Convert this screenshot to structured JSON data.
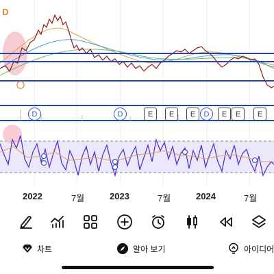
{
  "chart": {
    "top_badge": "D",
    "event_markers": [
      "D",
      "D",
      "E",
      "E",
      "E",
      "D",
      "E",
      "E",
      "E"
    ],
    "x_axis_labels": [
      "2022",
      "7월",
      "2023",
      "7월",
      "2024",
      "7월"
    ],
    "colors": {
      "price": "#8b1a1a",
      "horizontal_lines": "#2344b5",
      "oscillator_band": "#ece8fb",
      "oscillator_line": "#5b33c9",
      "marker_border": "#3a57c4"
    }
  },
  "toolbar": {
    "icons": [
      "draw-pen-icon",
      "indicator-icon",
      "grid-icon",
      "add-icon",
      "alarm-icon",
      "candlestick-icon",
      "rewind-icon",
      "layers-icon"
    ]
  },
  "bottom_bar": {
    "chart_label": "차트",
    "learn_label": "알아 보기",
    "idea_label": "아이디어"
  }
}
